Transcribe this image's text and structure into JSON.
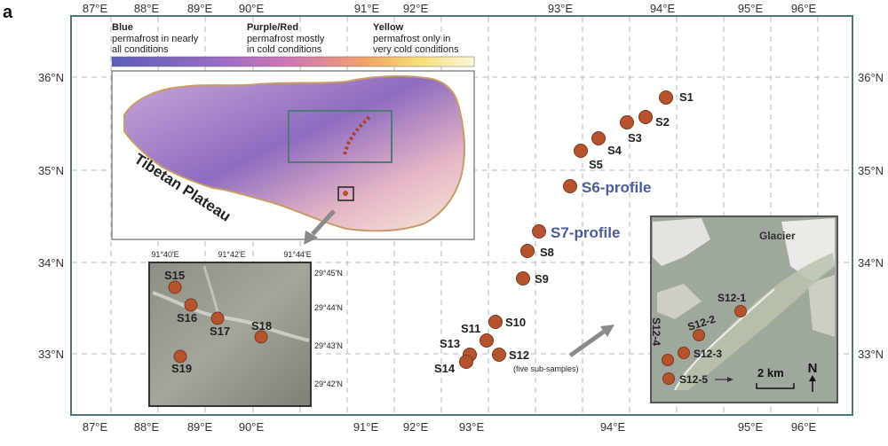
{
  "panel_label": "a",
  "longitude_ticks": [
    "87°E",
    "88°E",
    "89°E",
    "90°E",
    "91°E",
    "92°E",
    "93°E",
    "94°E",
    "95°E",
    "96°E"
  ],
  "latitude_ticks": [
    "36°N",
    "35°N",
    "34°N",
    "33°N"
  ],
  "legend": {
    "blue_title": "Blue",
    "blue_text_1": "permafrost in nearly",
    "blue_text_2": "all conditions",
    "purple_title": "Purple/Red",
    "purple_text_1": "permafrost mostly",
    "purple_text_2": "in cold conditions",
    "yellow_title": "Yellow",
    "yellow_text_1": "permafrost only in",
    "yellow_text_2": "very cold conditions"
  },
  "plateau_label": "Tibetan Plateau",
  "profiles": {
    "s6": "S6-profile",
    "s7": "S7-profile"
  },
  "sites": {
    "s1": "S1",
    "s2": "S2",
    "s3": "S3",
    "s4": "S4",
    "s5": "S5",
    "s8": "S8",
    "s9": "S9",
    "s10": "S10",
    "s11": "S11",
    "s12": "S12",
    "s13": "S13",
    "s14": "S14"
  },
  "s12_note": "(five sub-samples)",
  "inset_left": {
    "lon_ticks": [
      "91°40'E",
      "91°42'E",
      "91°44'E"
    ],
    "lat_ticks": [
      "29°45'N",
      "29°44'N",
      "29°43'N",
      "29°42'N"
    ],
    "sites": {
      "s15": "S15",
      "s16": "S16",
      "s17": "S17",
      "s18": "S18",
      "s19": "S19"
    }
  },
  "inset_right": {
    "glacier": "Glacier",
    "sites": {
      "s12_1": "S12-1",
      "s12_2": "S12-2",
      "s12_3": "S12-3",
      "s12_4": "S12-4",
      "s12_5": "S12-5"
    },
    "scale": "2 km",
    "north": "N"
  },
  "colors": {
    "site_fill": "#b5532f",
    "frame": "#4f7a78",
    "grid": "#b8b8b8",
    "profile_text": "#4a5e96",
    "plateau_outline": "#c99a6a",
    "ramp": [
      "#5b5fb8",
      "#9a6cc4",
      "#d279b5",
      "#f0a26a",
      "#f6e07a",
      "#fbf6d8"
    ]
  }
}
